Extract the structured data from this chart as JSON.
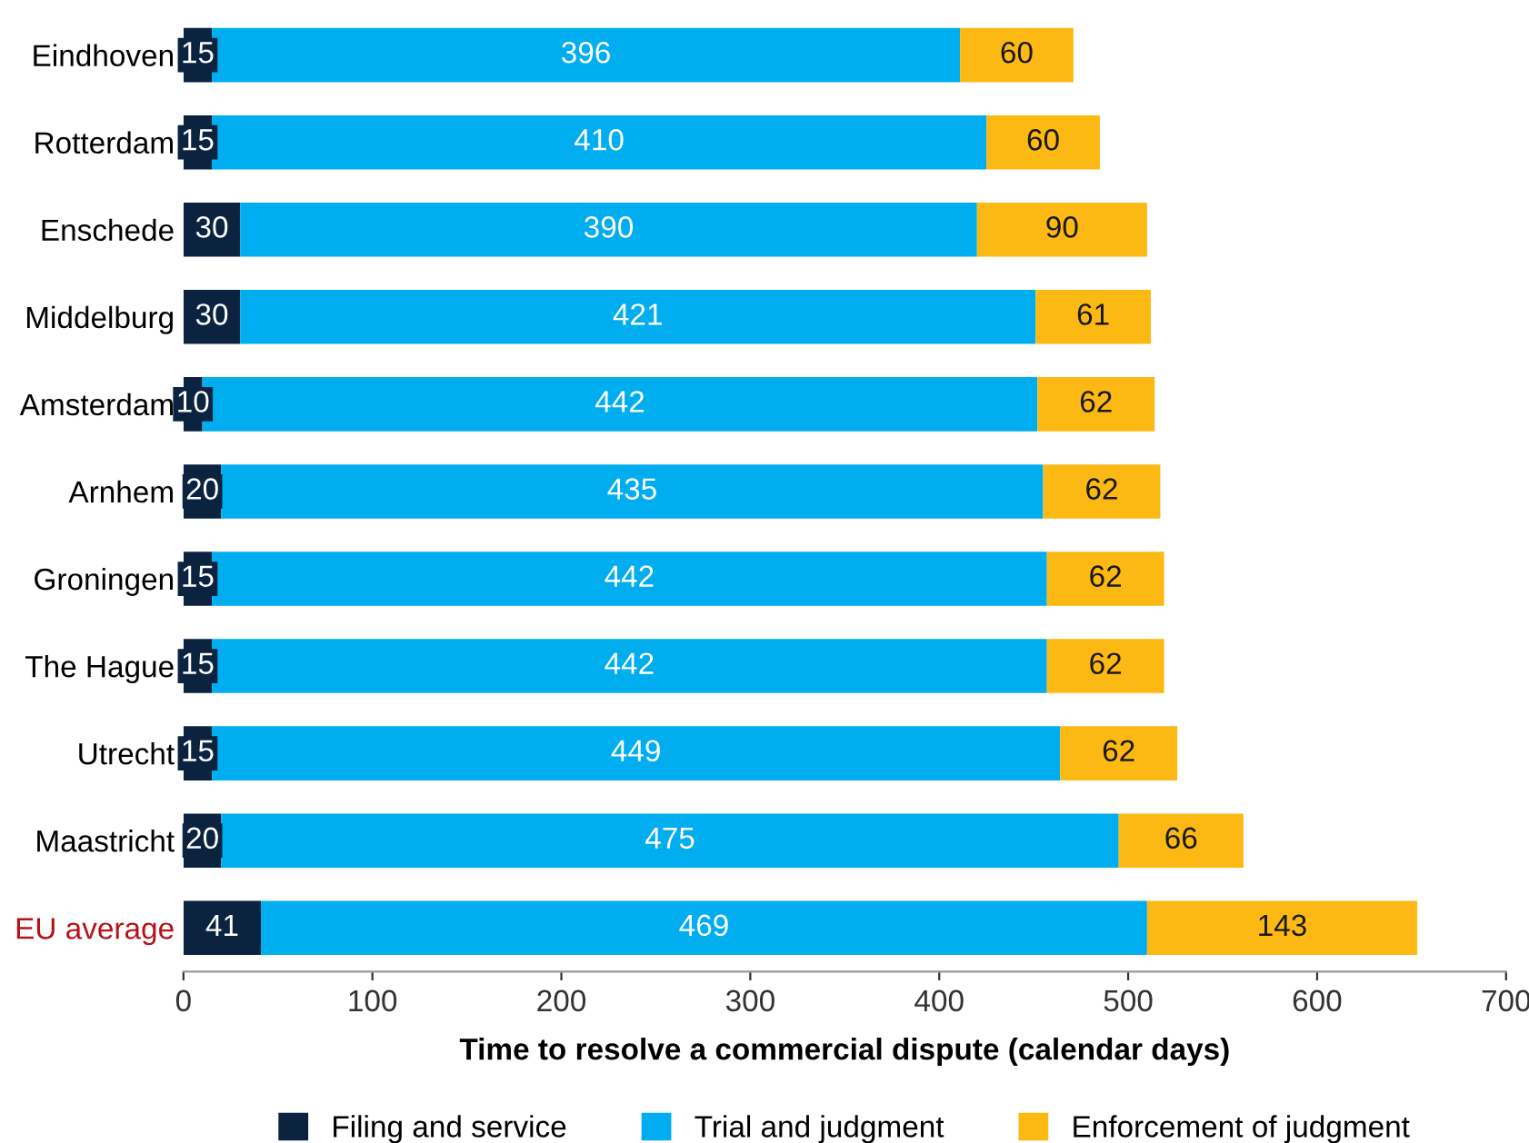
{
  "chart_data": {
    "type": "bar",
    "orientation": "horizontal",
    "stacked": true,
    "categories": [
      "Eindhoven",
      "Rotterdam",
      "Enschede",
      "Middelburg",
      "Amsterdam",
      "Arnhem",
      "Groningen",
      "The Hague",
      "Utrecht",
      "Maastricht",
      "EU average"
    ],
    "series": [
      {
        "name": "Filing and service",
        "color": "#0c2340",
        "values": [
          15,
          15,
          30,
          30,
          10,
          20,
          15,
          15,
          15,
          20,
          41
        ]
      },
      {
        "name": "Trial and judgment",
        "color": "#00aeef",
        "values": [
          396,
          410,
          390,
          421,
          442,
          435,
          442,
          442,
          449,
          475,
          469
        ]
      },
      {
        "name": "Enforcement of judgment",
        "color": "#fdb913",
        "values": [
          60,
          60,
          90,
          61,
          62,
          62,
          62,
          62,
          62,
          66,
          143
        ]
      }
    ],
    "xlim": [
      0,
      700
    ],
    "xticks": [
      0,
      100,
      200,
      300,
      400,
      500,
      600,
      700
    ],
    "xlabel": "Time to resolve a commercial dispute (calendar days)",
    "data_labels": true,
    "grid": false,
    "legend": "bottom"
  }
}
